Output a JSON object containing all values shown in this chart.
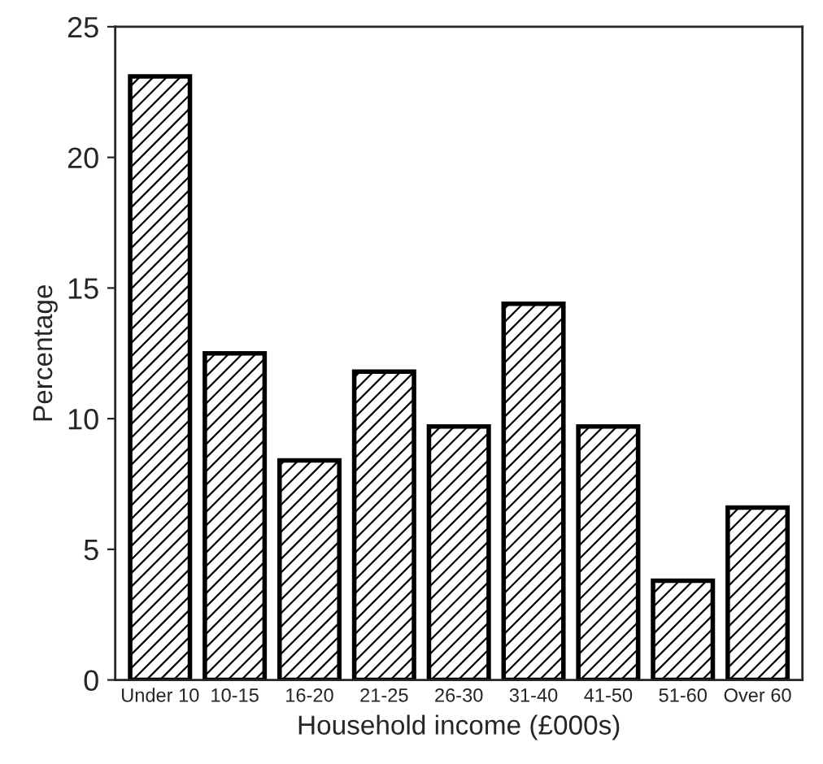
{
  "chart_data": {
    "type": "bar",
    "xlabel": "Household income (£000s)",
    "ylabel": "Percentage",
    "categories": [
      "Under 10",
      "10-15",
      "16-20",
      "21-25",
      "26-30",
      "31-40",
      "41-50",
      "51-60",
      "Over 60"
    ],
    "values": [
      23.1,
      12.5,
      8.4,
      11.8,
      9.7,
      14.4,
      9.7,
      3.8,
      6.6
    ],
    "color": "#000000",
    "ylim": [
      0,
      25
    ],
    "yticks": [
      0,
      5,
      10,
      15,
      20,
      25
    ],
    "grid": false,
    "legend": false
  }
}
